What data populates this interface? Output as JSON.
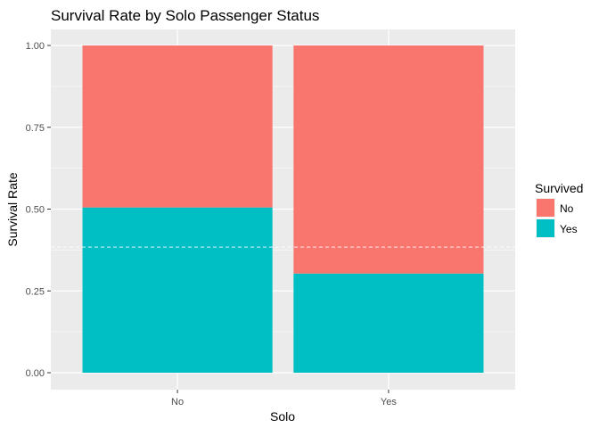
{
  "chart_data": {
    "type": "bar",
    "stacked": true,
    "title": "Survival Rate by Solo Passenger Status",
    "xlabel": "Solo",
    "ylabel": "Survival Rate",
    "categories": [
      "No",
      "Yes"
    ],
    "series": [
      {
        "name": "No",
        "color": "#F8766D",
        "values": [
          0.495,
          0.697
        ]
      },
      {
        "name": "Yes",
        "color": "#00BFC4",
        "values": [
          0.505,
          0.303
        ]
      }
    ],
    "ylim": [
      0,
      1
    ],
    "y_ticks": [
      "0.00",
      "0.25",
      "0.50",
      "0.75",
      "1.00"
    ],
    "reference_line": {
      "y": 0.384,
      "style": "dashed",
      "color": "#ffffff"
    },
    "legend": {
      "title": "Survived",
      "placement": "right",
      "entries": [
        "No",
        "Yes"
      ]
    },
    "grid": true,
    "panel_background": "#EBEBEB"
  }
}
